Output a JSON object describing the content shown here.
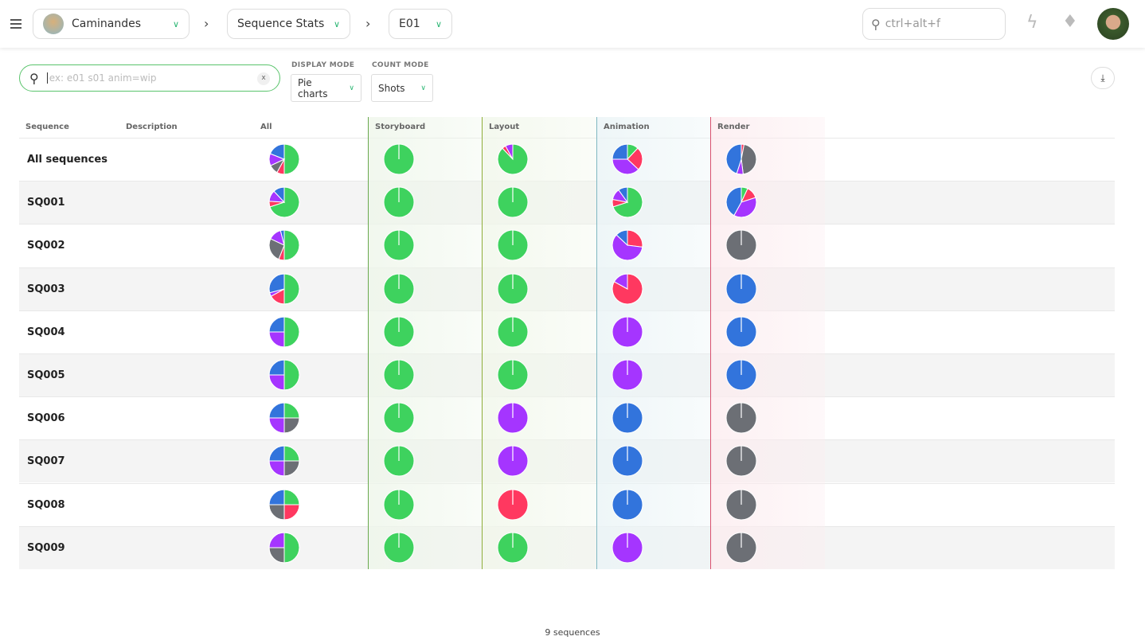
{
  "header": {
    "production": "Caminandes",
    "section": "Sequence Stats",
    "episode": "E01",
    "search_placeholder": "ctrl+alt+f"
  },
  "filters": {
    "search_placeholder": "ex: e01 s01 anim=wip",
    "clear_label": "x",
    "display_mode_label": "DISPLAY MODE",
    "display_mode": "Pie charts",
    "count_mode_label": "COUNT MODE",
    "count_mode": "Shots"
  },
  "colors": {
    "done": "#3ed25e",
    "retake": "#ff3860",
    "todo": "#6c6f75",
    "wfa": "#a535ff",
    "wip": "#3274dc"
  },
  "columns": {
    "sequence": "Sequence",
    "description": "Description",
    "all": "All",
    "task_types": [
      {
        "name": "Storyboard",
        "color": "#6aa84f",
        "tint": "#eef6ea"
      },
      {
        "name": "Layout",
        "color": "#8fae3a",
        "tint": "#f1f7ea"
      },
      {
        "name": "Animation",
        "color": "#7fb7c2",
        "tint": "#eaf4f6"
      },
      {
        "name": "Render",
        "color": "#d9506e",
        "tint": "#fcecef"
      }
    ]
  },
  "chart_data": {
    "type": "pie",
    "description": "Fraction of shots per status, slices clockwise from top",
    "rows": [
      {
        "name": "All sequences",
        "all": [
          [
            "done",
            0.5
          ],
          [
            "retake",
            0.08
          ],
          [
            "todo",
            0.1
          ],
          [
            "wfa",
            0.13
          ],
          [
            "wip",
            0.19
          ]
        ],
        "storyboard": [
          [
            "done",
            1
          ]
        ],
        "layout": [
          [
            "done",
            0.88
          ],
          [
            "retake",
            0.04
          ],
          [
            "wfa",
            0.08
          ]
        ],
        "animation": [
          [
            "done",
            0.12
          ],
          [
            "retake",
            0.25
          ],
          [
            "wfa",
            0.38
          ],
          [
            "wip",
            0.25
          ]
        ],
        "render": [
          [
            "retake",
            0.03
          ],
          [
            "todo",
            0.45
          ],
          [
            "wfa",
            0.07
          ],
          [
            "wip",
            0.45
          ]
        ]
      },
      {
        "name": "SQ001",
        "all": [
          [
            "done",
            0.7
          ],
          [
            "retake",
            0.06
          ],
          [
            "wfa",
            0.12
          ],
          [
            "wip",
            0.12
          ]
        ],
        "storyboard": [
          [
            "done",
            1
          ]
        ],
        "layout": [
          [
            "done",
            1
          ]
        ],
        "animation": [
          [
            "done",
            0.7
          ],
          [
            "retake",
            0.08
          ],
          [
            "wfa",
            0.12
          ],
          [
            "wip",
            0.1
          ]
        ],
        "render": [
          [
            "done",
            0.07
          ],
          [
            "retake",
            0.13
          ],
          [
            "wfa",
            0.38
          ],
          [
            "wip",
            0.42
          ]
        ]
      },
      {
        "name": "SQ002",
        "all": [
          [
            "done",
            0.5
          ],
          [
            "retake",
            0.06
          ],
          [
            "todo",
            0.26
          ],
          [
            "wfa",
            0.14
          ],
          [
            "wip",
            0.04
          ]
        ],
        "storyboard": [
          [
            "done",
            1
          ]
        ],
        "layout": [
          [
            "done",
            1
          ]
        ],
        "animation": [
          [
            "retake",
            0.27
          ],
          [
            "wfa",
            0.6
          ],
          [
            "wip",
            0.13
          ]
        ],
        "render": [
          [
            "todo",
            1
          ]
        ]
      },
      {
        "name": "SQ003",
        "all": [
          [
            "done",
            0.5
          ],
          [
            "retake",
            0.17
          ],
          [
            "wfa",
            0.04
          ],
          [
            "wip",
            0.29
          ]
        ],
        "storyboard": [
          [
            "done",
            1
          ]
        ],
        "layout": [
          [
            "done",
            1
          ]
        ],
        "animation": [
          [
            "retake",
            0.83
          ],
          [
            "wfa",
            0.17
          ]
        ],
        "render": [
          [
            "wip",
            1
          ]
        ]
      },
      {
        "name": "SQ004",
        "all": [
          [
            "done",
            0.5
          ],
          [
            "wfa",
            0.25
          ],
          [
            "wip",
            0.25
          ]
        ],
        "storyboard": [
          [
            "done",
            1
          ]
        ],
        "layout": [
          [
            "done",
            1
          ]
        ],
        "animation": [
          [
            "wfa",
            1
          ]
        ],
        "render": [
          [
            "wip",
            1
          ]
        ]
      },
      {
        "name": "SQ005",
        "all": [
          [
            "done",
            0.5
          ],
          [
            "wfa",
            0.25
          ],
          [
            "wip",
            0.25
          ]
        ],
        "storyboard": [
          [
            "done",
            1
          ]
        ],
        "layout": [
          [
            "done",
            1
          ]
        ],
        "animation": [
          [
            "wfa",
            1
          ]
        ],
        "render": [
          [
            "wip",
            1
          ]
        ]
      },
      {
        "name": "SQ006",
        "all": [
          [
            "done",
            0.25
          ],
          [
            "todo",
            0.25
          ],
          [
            "wfa",
            0.25
          ],
          [
            "wip",
            0.25
          ]
        ],
        "storyboard": [
          [
            "done",
            1
          ]
        ],
        "layout": [
          [
            "wfa",
            1
          ]
        ],
        "animation": [
          [
            "wip",
            1
          ]
        ],
        "render": [
          [
            "todo",
            1
          ]
        ]
      },
      {
        "name": "SQ007",
        "all": [
          [
            "done",
            0.25
          ],
          [
            "todo",
            0.25
          ],
          [
            "wfa",
            0.25
          ],
          [
            "wip",
            0.25
          ]
        ],
        "storyboard": [
          [
            "done",
            1
          ]
        ],
        "layout": [
          [
            "wfa",
            1
          ]
        ],
        "animation": [
          [
            "wip",
            1
          ]
        ],
        "render": [
          [
            "todo",
            1
          ]
        ]
      },
      {
        "name": "SQ008",
        "all": [
          [
            "done",
            0.25
          ],
          [
            "retake",
            0.25
          ],
          [
            "todo",
            0.25
          ],
          [
            "wip",
            0.25
          ]
        ],
        "storyboard": [
          [
            "done",
            1
          ]
        ],
        "layout": [
          [
            "retake",
            1
          ]
        ],
        "animation": [
          [
            "wip",
            1
          ]
        ],
        "render": [
          [
            "todo",
            1
          ]
        ]
      },
      {
        "name": "SQ009",
        "all": [
          [
            "done",
            0.5
          ],
          [
            "todo",
            0.25
          ],
          [
            "wfa",
            0.25
          ]
        ],
        "storyboard": [
          [
            "done",
            1
          ]
        ],
        "layout": [
          [
            "done",
            1
          ]
        ],
        "animation": [
          [
            "wfa",
            1
          ]
        ],
        "render": [
          [
            "todo",
            1
          ]
        ]
      }
    ]
  },
  "footer": {
    "count": "9 sequences"
  }
}
